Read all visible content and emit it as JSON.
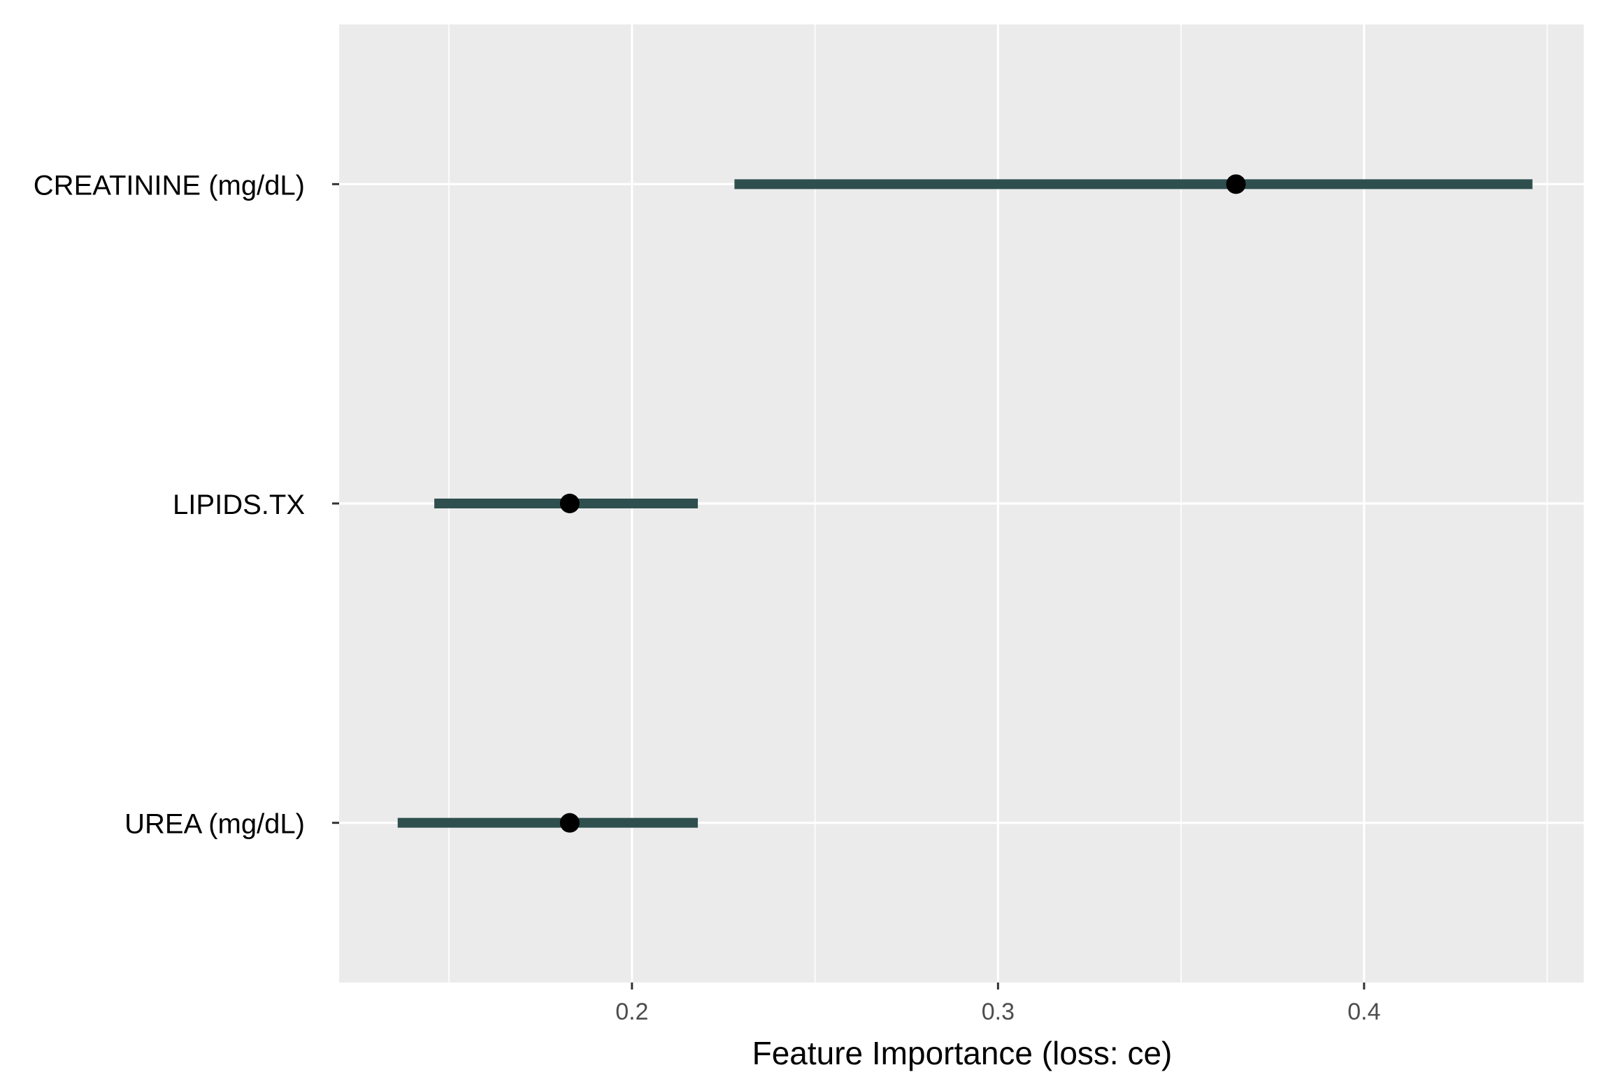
{
  "chart_data": {
    "type": "dot-interval",
    "xlabel": "Feature Importance (loss: ce)",
    "ylabel": "",
    "xlim": [
      0.12,
      0.46
    ],
    "xticks": [
      0.2,
      0.3,
      0.4
    ],
    "xtick_labels": [
      "0.2",
      "0.3",
      "0.4"
    ],
    "grid": true,
    "categories": [
      "CREATININE (mg/dL)",
      "LIPIDS.TX",
      "UREA (mg/dL)"
    ],
    "points": [
      {
        "label": "CREATININE (mg/dL)",
        "value": 0.365,
        "low": 0.228,
        "high": 0.446
      },
      {
        "label": "LIPIDS.TX",
        "value": 0.183,
        "low": 0.146,
        "high": 0.218
      },
      {
        "label": "UREA (mg/dL)",
        "value": 0.183,
        "low": 0.136,
        "high": 0.218
      }
    ],
    "colors": {
      "panel": "#ebebeb",
      "grid": "#ffffff",
      "interval": "#2f4f4f",
      "point": "#000000"
    }
  }
}
